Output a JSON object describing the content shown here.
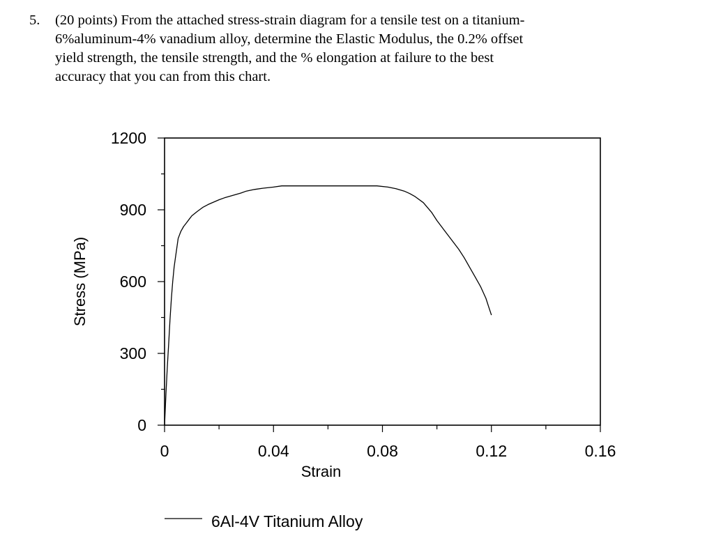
{
  "question": {
    "number": "5.",
    "text": "(20 points) From the attached stress-strain diagram for a tensile test on a titanium-\n6%aluminum-4% vanadium alloy, determine the Elastic Modulus, the 0.2% offset\nyield strength, the tensile strength, and the % elongation at failure to the best\naccuracy that you can from this chart."
  },
  "chart_data": {
    "type": "line",
    "title": "",
    "xlabel": "Strain",
    "ylabel": "Stress (MPa)",
    "xlim": [
      0,
      0.16
    ],
    "ylim": [
      0,
      1200
    ],
    "x_ticks": [
      0,
      0.04,
      0.08,
      0.12,
      0.16
    ],
    "x_tick_labels": [
      "0",
      "0.04",
      "0.08",
      "0.12",
      "0.16"
    ],
    "y_ticks": [
      0,
      300,
      600,
      900,
      1200
    ],
    "y_tick_labels": [
      "0",
      "300",
      "600",
      "900",
      "1200"
    ],
    "grid": false,
    "legend_position": "bottom",
    "series": [
      {
        "name": "6Al-4V Titanium Alloy",
        "color": "#000000",
        "x": [
          0,
          0.0005,
          0.001,
          0.0015,
          0.002,
          0.0025,
          0.003,
          0.0035,
          0.004,
          0.005,
          0.006,
          0.007,
          0.008,
          0.009,
          0.01,
          0.012,
          0.014,
          0.016,
          0.018,
          0.02,
          0.022,
          0.025,
          0.028,
          0.03,
          0.033,
          0.036,
          0.04,
          0.043,
          0.047,
          0.05,
          0.055,
          0.06,
          0.065,
          0.07,
          0.075,
          0.078,
          0.082,
          0.085,
          0.088,
          0.09,
          0.092,
          0.095,
          0.098,
          0.1,
          0.103,
          0.106,
          0.108,
          0.11,
          0.112,
          0.114,
          0.116,
          0.118,
          0.119,
          0.12
        ],
        "y": [
          0,
          130,
          240,
          340,
          440,
          530,
          600,
          660,
          700,
          780,
          810,
          830,
          845,
          860,
          875,
          893,
          910,
          922,
          932,
          942,
          950,
          960,
          970,
          978,
          985,
          990,
          995,
          1000,
          1000,
          1000,
          1000,
          1000,
          1000,
          1000,
          1000,
          1000,
          995,
          988,
          978,
          968,
          955,
          930,
          890,
          855,
          810,
          765,
          735,
          700,
          660,
          620,
          580,
          530,
          495,
          460
        ]
      }
    ]
  }
}
